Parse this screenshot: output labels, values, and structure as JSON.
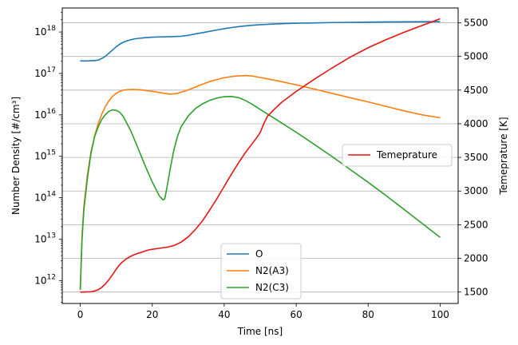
{
  "chart_data": {
    "type": "line",
    "xlabel": "Time [ns]",
    "ylabel_left": "Number Density [#/cm³]",
    "ylabel_right": "Temeprature [K]",
    "xlim": [
      -5,
      105
    ],
    "ylim_left": [
      280000000000.0,
      3.8e+18
    ],
    "ylim_right": [
      1330,
      5720
    ],
    "left_scale": "log",
    "right_scale": "linear",
    "grid": "horizontal, right axis ticks",
    "x_ticks": [
      0,
      20,
      40,
      60,
      80,
      100
    ],
    "x_tick_labels": [
      "0",
      "20",
      "40",
      "60",
      "80",
      "100"
    ],
    "left_ticks": [
      {
        "value": 1000000000000.0,
        "base": "10",
        "exp": "12"
      },
      {
        "value": 10000000000000.0,
        "base": "10",
        "exp": "13"
      },
      {
        "value": 100000000000000.0,
        "base": "10",
        "exp": "14"
      },
      {
        "value": 1000000000000000.0,
        "base": "10",
        "exp": "15"
      },
      {
        "value": 1e+16,
        "base": "10",
        "exp": "16"
      },
      {
        "value": 1e+17,
        "base": "10",
        "exp": "17"
      },
      {
        "value": 1e+18,
        "base": "10",
        "exp": "18"
      }
    ],
    "right_ticks": [
      1500,
      2000,
      2500,
      3000,
      3500,
      4000,
      4500,
      5000,
      5500
    ],
    "legend_left": {
      "placement": "lower-center",
      "entries": [
        "O",
        "N2(A3)",
        "N2(C3)"
      ]
    },
    "legend_right": {
      "placement": "center-right",
      "entries": [
        "Temeprature"
      ]
    },
    "series": [
      {
        "name": "O",
        "axis": "left",
        "color": "#1f77b4",
        "x": [
          0,
          2,
          4,
          5,
          6,
          7,
          8,
          9,
          10,
          11,
          12,
          13,
          14,
          15,
          16,
          18,
          20,
          22,
          25,
          28,
          30,
          32,
          35,
          38,
          40,
          42,
          45,
          48,
          50,
          55,
          60,
          65,
          70,
          75,
          80,
          85,
          90,
          95,
          100
        ],
        "y": [
          2e+17,
          2e+17,
          2.05e+17,
          2.1e+17,
          2.3e+17,
          2.6e+17,
          3.1e+17,
          3.7e+17,
          4.4e+17,
          5.1e+17,
          5.7e+17,
          6.1e+17,
          6.5e+17,
          6.8e+17,
          7e+17,
          7.3e+17,
          7.5e+17,
          7.6e+17,
          7.7e+17,
          7.9e+17,
          8.3e+17,
          9e+17,
          1e+18,
          1.12e+18,
          1.2e+18,
          1.28e+18,
          1.38e+18,
          1.46e+18,
          1.5e+18,
          1.58e+18,
          1.63e+18,
          1.66e+18,
          1.69e+18,
          1.71e+18,
          1.73e+18,
          1.75e+18,
          1.76e+18,
          1.77e+18,
          1.78e+18
        ]
      },
      {
        "name": "N2(A3)",
        "axis": "left",
        "color": "#ff7f0e",
        "x": [
          0,
          0.5,
          1,
          2,
          3,
          4,
          5,
          6,
          7,
          8,
          9,
          10,
          11,
          12,
          13,
          14,
          15,
          17,
          20,
          23,
          25,
          27,
          30,
          33,
          36,
          40,
          43,
          46,
          48,
          50,
          55,
          60,
          65,
          70,
          75,
          80,
          85,
          90,
          95,
          100
        ],
        "y": [
          600000000000.0,
          12000000000000.0,
          60000000000000.0,
          360000000000000.0,
          1300000000000000.0,
          3100000000000000.0,
          6200000000000000.0,
          1.05e+16,
          1.6e+16,
          2.2e+16,
          2.8e+16,
          3.3e+16,
          3.7e+16,
          3.95e+16,
          4.05e+16,
          4.1e+16,
          4.1e+16,
          4e+16,
          3.7e+16,
          3.35e+16,
          3.15e+16,
          3.3e+16,
          4e+16,
          5.1e+16,
          6.4e+16,
          7.9e+16,
          8.6e+16,
          8.9e+16,
          8.6e+16,
          8e+16,
          6.6e+16,
          5.3e+16,
          4.2e+16,
          3.3e+16,
          2.6e+16,
          2.05e+16,
          1.6e+16,
          1.25e+16,
          1e+16,
          8500000000000000.0
        ]
      },
      {
        "name": "N2(C3)",
        "axis": "left",
        "color": "#2ca02c",
        "x": [
          0,
          0.5,
          1,
          2,
          3,
          4,
          5,
          6,
          7,
          8,
          9,
          10,
          11,
          12,
          14,
          16,
          18,
          20,
          22,
          23,
          23.5,
          24,
          25,
          26,
          27,
          28,
          30,
          32,
          34,
          36,
          38,
          40,
          42,
          44,
          46,
          48,
          50,
          55,
          60,
          65,
          70,
          75,
          80,
          85,
          90,
          95,
          100
        ],
        "y": [
          600000000000.0,
          10000000000000.0,
          50000000000000.0,
          300000000000000.0,
          1200000000000000.0,
          3000000000000000.0,
          5200000000000000.0,
          7800000000000000.0,
          1.02e+16,
          1.22e+16,
          1.32e+16,
          1.28e+16,
          1.15e+16,
          9000000000000000.0,
          4200000000000000.0,
          1600000000000000.0,
          600000000000000.0,
          240000000000000.0,
          110000000000000.0,
          88000000000000.0,
          95000000000000.0,
          160000000000000.0,
          500000000000000.0,
          1400000000000000.0,
          3000000000000000.0,
          5100000000000000.0,
          9400000000000000.0,
          1.42e+16,
          1.85e+16,
          2.25e+16,
          2.55e+16,
          2.75e+16,
          2.78e+16,
          2.6e+16,
          2.2e+16,
          1.75e+16,
          1.35e+16,
          7200000000000000.0,
          3800000000000000.0,
          1950000000000000.0,
          980000000000000.0,
          480000000000000.0,
          235000000000000.0,
          112000000000000.0,
          52000000000000.0,
          24000000000000.0,
          11000000000000.0
        ]
      },
      {
        "name": "Temeprature",
        "axis": "right",
        "color": "#e8150f",
        "x": [
          0,
          1,
          2,
          3,
          4,
          5,
          6,
          7,
          8,
          9,
          10,
          11,
          12,
          13,
          14,
          15,
          16,
          17,
          18,
          19,
          20,
          22,
          24,
          26,
          28,
          30,
          32,
          34,
          36,
          38,
          40,
          42,
          44,
          46,
          48,
          49,
          50,
          51,
          52,
          54,
          56,
          58,
          60,
          65,
          70,
          75,
          80,
          85,
          90,
          95,
          100
        ],
        "y": [
          1500,
          1500,
          1502,
          1505,
          1515,
          1535,
          1570,
          1620,
          1685,
          1760,
          1840,
          1910,
          1960,
          2000,
          2030,
          2055,
          2075,
          2090,
          2110,
          2125,
          2135,
          2150,
          2165,
          2190,
          2240,
          2320,
          2430,
          2560,
          2720,
          2890,
          3070,
          3250,
          3420,
          3580,
          3720,
          3790,
          3870,
          4000,
          4110,
          4220,
          4320,
          4400,
          4480,
          4660,
          4830,
          4990,
          5130,
          5250,
          5360,
          5460,
          5560
        ]
      }
    ]
  }
}
